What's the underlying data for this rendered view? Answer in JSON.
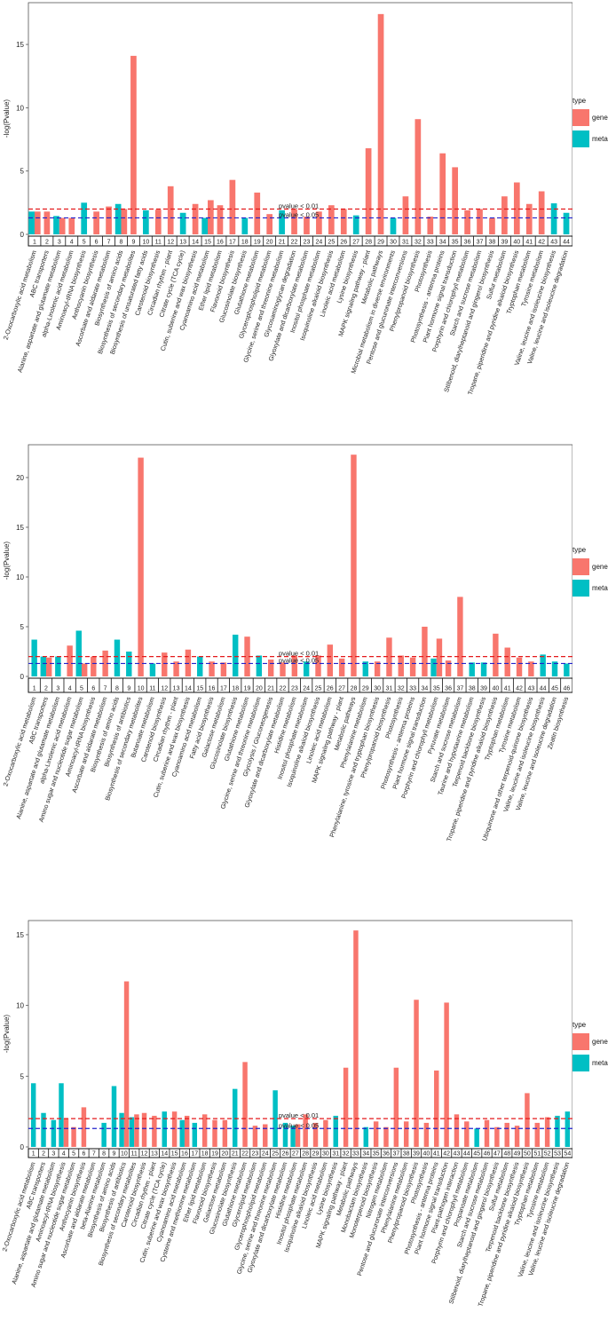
{
  "legend": {
    "title": "type",
    "items": [
      {
        "label": "gene",
        "color": "#F8766D"
      },
      {
        "label": "meta",
        "color": "#00BFC4"
      }
    ]
  },
  "chart_data": [
    {
      "type": "bar",
      "title": "",
      "ylabel": "-log(Pvalue)",
      "xlabel": "",
      "ylim": [
        0,
        18.3
      ],
      "yticks": [
        0,
        5,
        10,
        15
      ],
      "thresholds": [
        {
          "label": "pvalue < 0.01",
          "value": 2.0,
          "color": "#E41A1C"
        },
        {
          "label": "pvalue < 0.05",
          "value": 1.3,
          "color": "#2222CC"
        }
      ],
      "index_labels": [
        "1",
        "2",
        "3",
        "4",
        "5",
        "6",
        "7",
        "8",
        "9",
        "10",
        "11",
        "12",
        "13",
        "14",
        "15",
        "16",
        "17",
        "18",
        "19",
        "20",
        "21",
        "22",
        "23",
        "24",
        "25",
        "26",
        "27",
        "28",
        "29",
        "30",
        "31",
        "32",
        "33",
        "34",
        "35",
        "36",
        "37",
        "38",
        "39",
        "40",
        "41",
        "42",
        "43",
        "44"
      ],
      "categories": [
        "2-Oxocarboxylic acid metabolism",
        "ABC transporters",
        "Alanine, aspartate and glutamate metabolism",
        "alpha-Linolenic acid metabolism",
        "Aminoacyl-tRNA biosynthesis",
        "Anthocyanin biosynthesis",
        "Ascorbate and aldarate metabolism",
        "Biosynthesis of amino acids",
        "Biosynthesis of secondary metabolites",
        "Biosynthesis of unsaturated fatty acids",
        "Carotenoid biosynthesis",
        "Circadian rhythm - plant",
        "Citrate cycle (TCA cycle)",
        "Cutin, suberine and wax biosynthesis",
        "Cyanoamino acid metabolism",
        "Ether lipid metabolism",
        "Flavonoid biosynthesis",
        "Glucosinolate biosynthesis",
        "Glutathione metabolism",
        "Glycerophospholipid metabolism",
        "Glycine, serine and threonine metabolism",
        "Glycosaminoglycan degradation",
        "Glyoxylate and dicarboxylate metabolism",
        "Inositol phosphate metabolism",
        "Isoquinoline alkaloid biosynthesis",
        "Linoleic acid metabolism",
        "Lysine biosynthesis",
        "MAPK signaling pathway - plant",
        "Metabolic pathways",
        "Microbial metabolism in diverse environments",
        "Pentose and glucuronate interconversions",
        "Phenylpropanoid biosynthesis",
        "Photosynthesis",
        "Photosynthesis - antenna proteins",
        "Plant hormone signal transduction",
        "Porphyrin and chlorophyll metabolism",
        "Starch and sucrose metabolism",
        "Stilbenoid, diarylheptanoid and gingerol biosynthesis",
        "Sulfur metabolism",
        "Tropane, piperidine and pyridine alkaloid biosynthesis",
        "Tryptophan metabolism",
        "Tyrosine metabolism",
        "Valine, leucine and isoleucine biosynthesis",
        "Valine, leucine and isoleucine degradation"
      ],
      "series": [
        {
          "name": "meta",
          "values": [
            1.8,
            null,
            1.45,
            null,
            2.5,
            null,
            null,
            2.4,
            null,
            1.9,
            null,
            null,
            1.7,
            null,
            1.3,
            null,
            null,
            1.3,
            null,
            null,
            1.9,
            null,
            null,
            null,
            null,
            null,
            1.5,
            null,
            null,
            1.3,
            null,
            null,
            null,
            null,
            null,
            null,
            null,
            null,
            null,
            null,
            null,
            null,
            2.45,
            1.7
          ]
        },
        {
          "name": "gene",
          "values": [
            1.8,
            1.8,
            1.3,
            1.3,
            null,
            1.8,
            2.2,
            2.0,
            14.1,
            null,
            1.95,
            3.8,
            null,
            2.4,
            2.7,
            2.3,
            4.3,
            null,
            3.3,
            1.6,
            null,
            2.0,
            1.4,
            1.8,
            2.3,
            2.0,
            null,
            6.8,
            17.4,
            null,
            3.0,
            9.1,
            1.4,
            6.4,
            5.3,
            1.9,
            2.0,
            1.3,
            3.0,
            4.1,
            2.4,
            3.4,
            null,
            null
          ]
        }
      ]
    },
    {
      "type": "bar",
      "title": "",
      "ylabel": "-log(Pvalue)",
      "xlabel": "",
      "ylim": [
        0,
        23.3
      ],
      "yticks": [
        0,
        5,
        10,
        15,
        20
      ],
      "thresholds": [
        {
          "label": "pvalue < 0.01",
          "value": 2.0,
          "color": "#E41A1C"
        },
        {
          "label": "pvalue < 0.05",
          "value": 1.3,
          "color": "#2222CC"
        }
      ],
      "index_labels": [
        "1",
        "2",
        "3",
        "4",
        "5",
        "6",
        "7",
        "8",
        "9",
        "10",
        "11",
        "12",
        "13",
        "14",
        "15",
        "16",
        "17",
        "18",
        "19",
        "20",
        "21",
        "22",
        "23",
        "24",
        "25",
        "26",
        "27",
        "28",
        "29",
        "30",
        "31",
        "32",
        "33",
        "34",
        "35",
        "36",
        "37",
        "38",
        "39",
        "40",
        "41",
        "42",
        "43",
        "44",
        "45",
        "46"
      ],
      "categories": [
        "2-Oxocarboxylic acid metabolism",
        "ABC transporters",
        "Alanine, aspartate and glutamate metabolism",
        "alpha-Linolenic acid metabolism",
        "Amino sugar and nucleotide sugar metabolism",
        "Aminoacyl-tRNA biosynthesis",
        "Ascorbate and aldarate metabolism",
        "Biosynthesis of amino acids",
        "Biosynthesis of antibiotics",
        "Biosynthesis of secondary metabolites",
        "Butanoate metabolism",
        "Carotenoid biosynthesis",
        "Circadian rhythm - plant",
        "Cutin, suberine and wax biosynthesis",
        "Cyanoamino acid metabolism",
        "Fatty acid biosynthesis",
        "Galactose metabolism",
        "Glucosinolate biosynthesis",
        "Glutathione metabolism",
        "Glycine, serine and threonine metabolism",
        "Glycolysis / Gluconeogenesis",
        "Glyoxylate and dicarboxylate metabolism",
        "Histidine metabolism",
        "Inositol phosphate metabolism",
        "Isoquinoline alkaloid biosynthesis",
        "Linoleic acid metabolism",
        "MAPK signaling pathway - plant",
        "Metabolic pathways",
        "Phenylalanine metabolism",
        "Phenylalanine, tyrosine and tryptophan biosynthesis",
        "Phenylpropanoid biosynthesis",
        "Photosynthesis",
        "Photosynthesis - antenna proteins",
        "Plant hormone signal transduction",
        "Porphyrin and chlorophyll metabolism",
        "Pyruvate metabolism",
        "Starch and sucrose metabolism",
        "Taurine and hypotaurine metabolism",
        "Terpenoid backbone biosynthesis",
        "Tropane, piperidine and pyridine alkaloid biosynthesis",
        "Tryptophan metabolism",
        "Tyrosine metabolism",
        "Ubiquinone and other terpenoid-quinone biosynthesis",
        "Valine, leucine and isoleucine biosynthesis",
        "Valine, leucine and isoleucine degradation",
        "Zeatin biosynthesis"
      ],
      "series": [
        {
          "name": "meta",
          "values": [
            3.7,
            2.0,
            2.0,
            null,
            4.6,
            null,
            null,
            3.7,
            2.5,
            null,
            1.3,
            null,
            null,
            null,
            2.0,
            null,
            null,
            4.2,
            null,
            2.1,
            null,
            null,
            null,
            1.5,
            null,
            null,
            null,
            null,
            1.5,
            null,
            null,
            null,
            null,
            null,
            1.8,
            null,
            null,
            1.4,
            1.4,
            null,
            null,
            null,
            null,
            2.2,
            1.5,
            1.3
          ]
        },
        {
          "name": "gene",
          "values": [
            null,
            1.9,
            null,
            3.1,
            1.3,
            2.0,
            2.6,
            null,
            null,
            22.0,
            null,
            2.4,
            1.5,
            2.7,
            null,
            1.5,
            1.4,
            null,
            4.0,
            null,
            1.7,
            1.4,
            2.1,
            null,
            2.1,
            3.2,
            1.8,
            22.3,
            null,
            1.5,
            3.9,
            2.1,
            1.9,
            5.0,
            3.8,
            1.6,
            8.0,
            null,
            null,
            4.3,
            2.9,
            1.9,
            1.5,
            null,
            null,
            null
          ]
        }
      ]
    },
    {
      "type": "bar",
      "title": "",
      "ylabel": "-log(Pvalue)",
      "xlabel": "",
      "ylim": [
        0,
        16.0
      ],
      "yticks": [
        0,
        5,
        10,
        15
      ],
      "thresholds": [
        {
          "label": "pvalue < 0.01",
          "value": 2.0,
          "color": "#E41A1C"
        },
        {
          "label": "pvalue < 0.05",
          "value": 1.3,
          "color": "#2222CC"
        }
      ],
      "index_labels": [
        "1",
        "2",
        "3",
        "4",
        "5",
        "6",
        "7",
        "8",
        "9",
        "10",
        "11",
        "12",
        "13",
        "14",
        "15",
        "16",
        "17",
        "18",
        "19",
        "20",
        "21",
        "22",
        "23",
        "24",
        "25",
        "26",
        "27",
        "28",
        "29",
        "30",
        "31",
        "32",
        "33",
        "34",
        "35",
        "36",
        "37",
        "38",
        "39",
        "40",
        "41",
        "42",
        "43",
        "44",
        "45",
        "46",
        "47",
        "48",
        "49",
        "50",
        "51",
        "52",
        "53",
        "54"
      ],
      "categories": [
        "2-Oxocarboxylic acid metabolism",
        "ABC transporters",
        "Alanine, aspartate and glutamate metabolism",
        "Aminoacyl-tRNA biosynthesis",
        "Amino sugar and nucleotide sugar metabolism",
        "Anthocyanin biosynthesis",
        "Ascorbate and aldarate metabolism",
        "beta-Alanine metabolism",
        "Biosynthesis of amino acids",
        "Biosynthesis of antibiotics",
        "Biosynthesis of secondary metabolites",
        "Carotenoid biosynthesis",
        "Circadian rhythm - plant",
        "Citrate cycle (TCA cycle)",
        "Cutin, suberine and wax biosynthesis",
        "Cyanoamino acid metabolism",
        "Cysteine and methionine metabolism",
        "Ether lipid metabolism",
        "Flavonoid biosynthesis",
        "Galactose metabolism",
        "Glucosinolate biosynthesis",
        "Glutathione metabolism",
        "Glycerolipid metabolism",
        "Glycerophospholipid metabolism",
        "Glycine, serine and threonine metabolism",
        "Glyoxylate and dicarboxylate metabolism",
        "Histidine metabolism",
        "Inositol phosphate metabolism",
        "Isoquinoline alkaloid biosynthesis",
        "Linoleic acid metabolism",
        "Lysine biosynthesis",
        "MAPK signaling pathway - plant",
        "Metabolic pathways",
        "Monobactam biosynthesis",
        "Monoterpenoid biosynthesis",
        "Nitrogen metabolism",
        "Pentose and glucuronate interconversions",
        "Phenylalanine metabolism",
        "Phenylpropanoid biosynthesis",
        "Photosynthesis",
        "Photosynthesis - antenna proteins",
        "Plant hormone signal transduction",
        "Plant-pathogen interaction",
        "Porphyrin and chlorophyll metabolism",
        "Propanoate metabolism",
        "Starch and sucrose metabolism",
        "Stilbenoid, diarylheptanoid and gingerol biosynthesis",
        "Sulfur metabolism",
        "Terpenoid backbone biosynthesis",
        "Tropane, piperidine and pyridine alkaloid biosynthesis",
        "Tryptophan metabolism",
        "Tyrosine metabolism",
        "Valine, leucine and isoleucine biosynthesis",
        "Valine, leucine and isoleucine degradation"
      ],
      "series": [
        {
          "name": "meta",
          "values": [
            4.5,
            2.4,
            1.9,
            4.5,
            null,
            null,
            null,
            1.7,
            4.3,
            2.4,
            2.1,
            null,
            null,
            2.5,
            null,
            1.9,
            1.7,
            null,
            null,
            null,
            4.1,
            null,
            null,
            null,
            4.0,
            1.7,
            1.5,
            null,
            null,
            null,
            2.2,
            null,
            null,
            1.4,
            null,
            null,
            null,
            null,
            null,
            null,
            null,
            null,
            null,
            null,
            1.3,
            null,
            null,
            null,
            null,
            null,
            null,
            null,
            2.2,
            2.5
          ]
        },
        {
          "name": "gene",
          "values": [
            null,
            null,
            null,
            2.0,
            1.4,
            2.8,
            null,
            null,
            null,
            11.7,
            2.3,
            2.4,
            2.2,
            null,
            2.5,
            2.2,
            null,
            2.3,
            1.9,
            1.9,
            null,
            6.0,
            1.5,
            1.6,
            null,
            null,
            1.6,
            2.3,
            1.7,
            1.9,
            null,
            5.6,
            15.3,
            null,
            1.8,
            1.4,
            5.6,
            1.8,
            10.4,
            1.7,
            5.4,
            10.2,
            2.3,
            1.8,
            null,
            1.9,
            1.4,
            1.7,
            1.5,
            3.8,
            1.7,
            2.1,
            null,
            null
          ]
        }
      ]
    }
  ]
}
